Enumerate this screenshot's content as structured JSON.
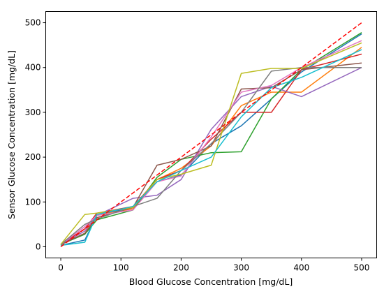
{
  "chart_data": {
    "type": "line",
    "title": "",
    "xlabel": "Blood Glucose Concentration [mg/dL]",
    "ylabel": "Sensor Glucose Concentration [mg/dL]",
    "xlim": [
      -25,
      525
    ],
    "ylim": [
      -25,
      525
    ],
    "xticks": [
      0,
      100,
      200,
      300,
      400,
      500
    ],
    "yticks": [
      0,
      100,
      200,
      300,
      400,
      500
    ],
    "grid": false,
    "legend": "none",
    "reference_line": {
      "x": [
        0,
        500
      ],
      "y": [
        0,
        500
      ],
      "color": "#ff0000",
      "style": "dashed"
    },
    "x": [
      0,
      40,
      60,
      120,
      160,
      200,
      250,
      300,
      350,
      400,
      500
    ],
    "series": [
      {
        "color": "#1f77b4",
        "values": [
          3,
          15,
          70,
          88,
          145,
          160,
          230,
          270,
          330,
          390,
          475
        ]
      },
      {
        "color": "#ff7f0e",
        "values": [
          5,
          30,
          70,
          85,
          150,
          175,
          225,
          315,
          345,
          345,
          445
        ]
      },
      {
        "color": "#2ca02c",
        "values": [
          5,
          28,
          60,
          82,
          155,
          195,
          210,
          212,
          330,
          395,
          478
        ]
      },
      {
        "color": "#d62728",
        "values": [
          5,
          40,
          75,
          90,
          150,
          170,
          240,
          300,
          300,
          395,
          430
        ]
      },
      {
        "color": "#9467bd",
        "values": [
          5,
          35,
          70,
          108,
          115,
          150,
          262,
          335,
          358,
          335,
          400
        ]
      },
      {
        "color": "#8c564b",
        "values": [
          5,
          30,
          65,
          88,
          182,
          195,
          225,
          352,
          355,
          395,
          410
        ]
      },
      {
        "color": "#e377c2",
        "values": [
          5,
          45,
          70,
          82,
          145,
          158,
          245,
          345,
          360,
          400,
          460
        ]
      },
      {
        "color": "#7f7f7f",
        "values": [
          5,
          50,
          62,
          90,
          108,
          170,
          230,
          300,
          392,
          400,
          400
        ]
      },
      {
        "color": "#bcbd22",
        "values": [
          5,
          72,
          75,
          88,
          150,
          162,
          182,
          387,
          398,
          398,
          455
        ]
      },
      {
        "color": "#17becf",
        "values": [
          3,
          10,
          72,
          90,
          145,
          170,
          200,
          290,
          355,
          378,
          440
        ]
      }
    ]
  }
}
